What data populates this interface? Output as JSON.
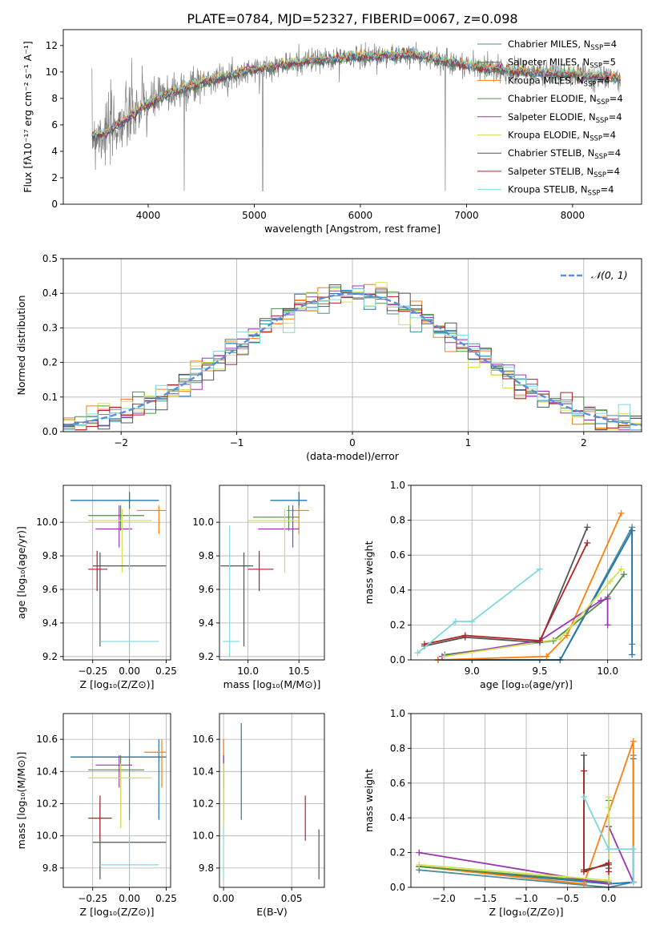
{
  "figure": {
    "title": "PLATE=0784, MJD=52327, FIBERID=0067, z=0.098"
  },
  "series": [
    {
      "name": "Chabrier MILES",
      "nssp": "4",
      "color": "#4e8d9a"
    },
    {
      "name": "Salpeter MILES",
      "nssp": "5",
      "color": "#1f77b4"
    },
    {
      "name": "Kroupa MILES",
      "nssp": "4",
      "color": "#ff7f0e"
    },
    {
      "name": "Chabrier ELODIE",
      "nssp": "4",
      "color": "#4f8f46"
    },
    {
      "name": "Salpeter ELODIE",
      "nssp": "4",
      "color": "#9c36b5"
    },
    {
      "name": "Kroupa ELODIE",
      "nssp": "4",
      "color": "#d4e157"
    },
    {
      "name": "Chabrier STELIB",
      "nssp": "4",
      "color": "#555555"
    },
    {
      "name": "Salpeter STELIB",
      "nssp": "4",
      "color": "#b22222"
    },
    {
      "name": "Kroupa STELIB",
      "nssp": "4",
      "color": "#7fd8dd"
    }
  ],
  "chart_data": [
    {
      "id": "spectrum",
      "type": "line",
      "xlabel": "wavelength [Angstrom, rest frame]",
      "ylabel": "Flux [fλ10⁻¹⁷ erg cm⁻² s⁻¹ A⁻¹]",
      "xlim": [
        3200,
        8650
      ],
      "ylim": [
        0,
        13.2
      ],
      "xticks": [
        4000,
        5000,
        6000,
        7000,
        8000
      ],
      "yticks": [
        0,
        2,
        4,
        6,
        8,
        10,
        12
      ],
      "grid": false,
      "legend": "right",
      "continuum": {
        "x": [
          3470,
          3600,
          3800,
          4000,
          4200,
          4500,
          5000,
          5500,
          6000,
          6500,
          7000,
          7500,
          8000,
          8450
        ],
        "y": [
          5.2,
          5.4,
          6.5,
          7.6,
          8.4,
          9.2,
          10.2,
          10.8,
          11.2,
          11.3,
          10.5,
          10.0,
          9.8,
          9.5
        ]
      }
    },
    {
      "id": "residuals",
      "type": "step",
      "xlabel": "(data-model)/error",
      "ylabel": "Normed distribution",
      "xlim": [
        -2.5,
        2.5
      ],
      "ylim": [
        0,
        0.5
      ],
      "xticks": [
        -2,
        -1,
        0,
        1,
        2
      ],
      "yticks": [
        0.0,
        0.1,
        0.2,
        0.3,
        0.4,
        0.5
      ],
      "grid": true,
      "legend": "top-right",
      "reference_label": "𝒩(0, 1)",
      "bin_width": 0.1
    },
    {
      "id": "age_vs_Z",
      "type": "errorbar",
      "xlabel": "Z [log₁₀(Z/Z⊙)]",
      "ylabel": "age  [log₁₀(age/yr)]",
      "xlim": [
        -0.45,
        0.28
      ],
      "ylim": [
        9.18,
        10.22
      ],
      "xticks": [
        -0.25,
        0.0,
        0.25
      ],
      "yticks": [
        9.2,
        9.4,
        9.6,
        9.8,
        10.0
      ],
      "grid": true,
      "points": [
        {
          "s": 0,
          "x": 0.0,
          "y": 10.13,
          "xlo": -0.4,
          "xhi": 0.2,
          "ylo": 10.08,
          "yhi": 10.18
        },
        {
          "s": 1,
          "x": 0.0,
          "y": 10.13,
          "xlo": -0.4,
          "xhi": 0.2,
          "ylo": 10.08,
          "yhi": 10.18
        },
        {
          "s": 2,
          "x": 0.2,
          "y": 10.07,
          "xlo": 0.05,
          "xhi": 0.25,
          "ylo": 9.93,
          "yhi": 10.1
        },
        {
          "s": 3,
          "x": -0.06,
          "y": 10.04,
          "xlo": -0.28,
          "xhi": 0.1,
          "ylo": 9.95,
          "yhi": 10.1
        },
        {
          "s": 4,
          "x": -0.07,
          "y": 9.96,
          "xlo": -0.23,
          "xhi": 0.02,
          "ylo": 9.85,
          "yhi": 10.1
        },
        {
          "s": 5,
          "x": -0.05,
          "y": 10.01,
          "xlo": -0.28,
          "xhi": 0.15,
          "ylo": 9.7,
          "yhi": 10.08
        },
        {
          "s": 6,
          "x": -0.2,
          "y": 9.74,
          "xlo": -0.25,
          "xhi": 0.25,
          "ylo": 9.26,
          "yhi": 9.82
        },
        {
          "s": 7,
          "x": -0.22,
          "y": 9.72,
          "xlo": -0.28,
          "xhi": -0.15,
          "ylo": 9.59,
          "yhi": 9.83
        },
        {
          "s": 8,
          "x": 0.0,
          "y": 9.29,
          "xlo": -0.2,
          "xhi": 0.2,
          "ylo": 9.2,
          "yhi": 10.05
        }
      ]
    },
    {
      "id": "age_vs_mass",
      "type": "errorbar",
      "xlabel": "mass [log₁₀(M/M⊙)]",
      "ylabel": "",
      "xlim": [
        9.72,
        10.75
      ],
      "ylim": [
        9.18,
        10.22
      ],
      "xticks": [
        10.0,
        10.5
      ],
      "yticks": [
        9.2,
        9.4,
        9.6,
        9.8,
        10.0
      ],
      "grid": true,
      "points": [
        {
          "s": 0,
          "x": 10.5,
          "y": 10.13,
          "xlo": 10.22,
          "xhi": 10.58,
          "ylo": 10.08,
          "yhi": 10.18
        },
        {
          "s": 1,
          "x": 10.5,
          "y": 10.13,
          "xlo": 10.22,
          "xhi": 10.58,
          "ylo": 10.08,
          "yhi": 10.18
        },
        {
          "s": 2,
          "x": 10.5,
          "y": 10.07,
          "xlo": 10.38,
          "xhi": 10.6,
          "ylo": 9.93,
          "yhi": 10.1
        },
        {
          "s": 3,
          "x": 10.4,
          "y": 10.03,
          "xlo": 10.05,
          "xhi": 10.5,
          "ylo": 9.95,
          "yhi": 10.1
        },
        {
          "s": 4,
          "x": 10.44,
          "y": 9.96,
          "xlo": 10.1,
          "xhi": 10.5,
          "ylo": 9.85,
          "yhi": 10.1
        },
        {
          "s": 5,
          "x": 10.36,
          "y": 10.01,
          "xlo": 10.0,
          "xhi": 10.5,
          "ylo": 9.7,
          "yhi": 10.08
        },
        {
          "s": 6,
          "x": 9.96,
          "y": 9.74,
          "xlo": 9.73,
          "xhi": 10.05,
          "ylo": 9.26,
          "yhi": 9.82
        },
        {
          "s": 7,
          "x": 10.11,
          "y": 9.72,
          "xlo": 10.0,
          "xhi": 10.25,
          "ylo": 9.59,
          "yhi": 9.83
        },
        {
          "s": 8,
          "x": 9.82,
          "y": 9.29,
          "xlo": 9.75,
          "xhi": 9.92,
          "ylo": 9.2,
          "yhi": 9.98
        }
      ]
    },
    {
      "id": "mass_weight_vs_age",
      "type": "line",
      "xlabel": "age  [log₁₀(age/yr)]",
      "ylabel": "mass weight",
      "xlim": [
        8.55,
        10.25
      ],
      "ylim": [
        0,
        1
      ],
      "xticks": [
        9.0,
        9.5,
        10.0
      ],
      "yticks": [
        0.0,
        0.2,
        0.4,
        0.6,
        0.8,
        1.0
      ],
      "grid": true,
      "lines": [
        {
          "s": 0,
          "x": [
            8.75,
            9.65,
            10.18,
            10.18
          ],
          "y": [
            0.0,
            0.0,
            0.76,
            0.09
          ]
        },
        {
          "s": 1,
          "x": [
            8.75,
            9.65,
            10.18,
            10.18
          ],
          "y": [
            0.0,
            0.0,
            0.74,
            0.03
          ]
        },
        {
          "s": 2,
          "x": [
            8.75,
            9.55,
            9.7,
            10.1
          ],
          "y": [
            0.0,
            0.02,
            0.14,
            0.84
          ]
        },
        {
          "s": 3,
          "x": [
            8.8,
            9.6,
            10.0,
            10.12
          ],
          "y": [
            0.03,
            0.11,
            0.36,
            0.49
          ]
        },
        {
          "s": 4,
          "x": [
            8.78,
            9.5,
            9.95,
            10.0,
            10.0
          ],
          "y": [
            0.02,
            0.11,
            0.34,
            0.35,
            0.2
          ]
        },
        {
          "s": 5,
          "x": [
            8.8,
            9.65,
            10.02,
            10.1
          ],
          "y": [
            0.02,
            0.12,
            0.45,
            0.52
          ]
        },
        {
          "s": 6,
          "x": [
            8.65,
            8.95,
            9.5,
            9.85
          ],
          "y": [
            0.08,
            0.13,
            0.1,
            0.76
          ]
        },
        {
          "s": 7,
          "x": [
            8.65,
            8.95,
            9.5,
            9.85
          ],
          "y": [
            0.09,
            0.14,
            0.11,
            0.67
          ]
        },
        {
          "s": 8,
          "x": [
            8.6,
            8.88,
            9.0,
            9.5
          ],
          "y": [
            0.04,
            0.22,
            0.22,
            0.52
          ]
        }
      ]
    },
    {
      "id": "mass_vs_Z",
      "type": "errorbar",
      "xlabel": "Z [log₁₀(Z/Z⊙)]",
      "ylabel": "mass [log₁₀(M/M⊙)]",
      "xlim": [
        -0.45,
        0.28
      ],
      "ylim": [
        9.68,
        10.76
      ],
      "xticks": [
        -0.25,
        0.0,
        0.25
      ],
      "yticks": [
        9.8,
        10.0,
        10.2,
        10.4,
        10.6
      ],
      "grid": true,
      "points": [
        {
          "s": 0,
          "x": 0.0,
          "y": 10.49,
          "xlo": -0.4,
          "xhi": 0.25,
          "ylo": 10.1,
          "yhi": 10.6
        },
        {
          "s": 1,
          "x": 0.2,
          "y": 10.49,
          "xlo": -0.4,
          "xhi": 0.25,
          "ylo": 10.1,
          "yhi": 10.6
        },
        {
          "s": 2,
          "x": 0.22,
          "y": 10.52,
          "xlo": 0.1,
          "xhi": 0.25,
          "ylo": 10.3,
          "yhi": 10.6
        },
        {
          "s": 3,
          "x": -0.06,
          "y": 10.41,
          "xlo": -0.28,
          "xhi": 0.1,
          "ylo": 10.05,
          "yhi": 10.5
        },
        {
          "s": 4,
          "x": -0.07,
          "y": 10.44,
          "xlo": -0.23,
          "xhi": 0.02,
          "ylo": 10.3,
          "yhi": 10.5
        },
        {
          "s": 5,
          "x": -0.06,
          "y": 10.36,
          "xlo": -0.28,
          "xhi": 0.15,
          "ylo": 10.05,
          "yhi": 10.45
        },
        {
          "s": 6,
          "x": -0.2,
          "y": 9.96,
          "xlo": -0.25,
          "xhi": 0.25,
          "ylo": 9.73,
          "yhi": 10.2
        },
        {
          "s": 7,
          "x": -0.2,
          "y": 10.11,
          "xlo": -0.28,
          "xhi": -0.12,
          "ylo": 9.97,
          "yhi": 10.25
        },
        {
          "s": 8,
          "x": 0.0,
          "y": 9.82,
          "xlo": -0.2,
          "xhi": 0.2,
          "ylo": 9.72,
          "yhi": 10.0
        }
      ]
    },
    {
      "id": "mass_vs_ebv",
      "type": "errorbar",
      "xlabel": "E(B-V)",
      "ylabel": "",
      "xlim": [
        -0.003,
        0.074
      ],
      "ylim": [
        9.68,
        10.76
      ],
      "xticks": [
        0.0,
        0.05
      ],
      "yticks": [
        9.8,
        10.0,
        10.2,
        10.4,
        10.6
      ],
      "grid": true,
      "points": [
        {
          "s": 0,
          "x": 0.0,
          "y": 10.49,
          "ylo": 10.1,
          "yhi": 10.6
        },
        {
          "s": 1,
          "x": 0.013,
          "y": 10.4,
          "ylo": 10.1,
          "yhi": 10.7
        },
        {
          "s": 2,
          "x": 0.0,
          "y": 10.52,
          "ylo": 10.3,
          "yhi": 10.6
        },
        {
          "s": 3,
          "x": 0.0,
          "y": 10.41,
          "ylo": 10.05,
          "yhi": 10.5
        },
        {
          "s": 4,
          "x": 0.0,
          "y": 10.44,
          "ylo": 10.3,
          "yhi": 10.5
        },
        {
          "s": 5,
          "x": 0.0,
          "y": 10.36,
          "ylo": 10.05,
          "yhi": 10.45
        },
        {
          "s": 6,
          "x": 0.07,
          "y": 9.96,
          "ylo": 9.73,
          "yhi": 10.04
        },
        {
          "s": 7,
          "x": 0.06,
          "y": 10.11,
          "ylo": 9.97,
          "yhi": 10.25
        },
        {
          "s": 8,
          "x": 0.0,
          "y": 9.82,
          "ylo": 9.72,
          "yhi": 10.05
        }
      ]
    },
    {
      "id": "mass_weight_vs_Z",
      "type": "line",
      "xlabel": "Z [log₁₀(Z/Z⊙)]",
      "ylabel": "mass weight",
      "xlim": [
        -2.4,
        0.4
      ],
      "ylim": [
        0,
        1
      ],
      "xticks": [
        -2.0,
        -1.5,
        -1.0,
        -0.5,
        0.0
      ],
      "yticks": [
        0.0,
        0.2,
        0.4,
        0.6,
        0.8,
        1.0
      ],
      "grid": true,
      "lines": [
        {
          "s": 0,
          "x": [
            -2.3,
            0.0,
            0.3,
            0.3
          ],
          "y": [
            0.1,
            0.0,
            0.03,
            0.76
          ]
        },
        {
          "s": 1,
          "x": [
            -2.3,
            0.0,
            0.3,
            0.3
          ],
          "y": [
            0.12,
            0.02,
            0.03,
            0.74
          ]
        },
        {
          "s": 2,
          "x": [
            -2.3,
            -0.3,
            0.3,
            0.3
          ],
          "y": [
            0.12,
            0.02,
            0.84,
            0.03
          ]
        },
        {
          "s": 3,
          "x": [
            -2.3,
            0.0,
            0.0,
            0.0
          ],
          "y": [
            0.12,
            0.03,
            0.5,
            0.35
          ]
        },
        {
          "s": 4,
          "x": [
            -2.3,
            0.0,
            0.0,
            0.3
          ],
          "y": [
            0.2,
            0.02,
            0.35,
            0.03
          ]
        },
        {
          "s": 5,
          "x": [
            -2.3,
            0.0,
            0.0,
            0.0
          ],
          "y": [
            0.13,
            0.04,
            0.52,
            0.46
          ]
        },
        {
          "s": 6,
          "x": [
            -0.3,
            -0.3,
            0.0,
            0.0
          ],
          "y": [
            0.76,
            0.1,
            0.13,
            0.11
          ]
        },
        {
          "s": 7,
          "x": [
            -0.3,
            -0.3,
            0.0,
            0.0
          ],
          "y": [
            0.67,
            0.09,
            0.14,
            0.09
          ]
        },
        {
          "s": 8,
          "x": [
            -0.3,
            0.0,
            0.3,
            0.3
          ],
          "y": [
            0.52,
            0.22,
            0.22,
            0.03
          ]
        }
      ]
    }
  ]
}
